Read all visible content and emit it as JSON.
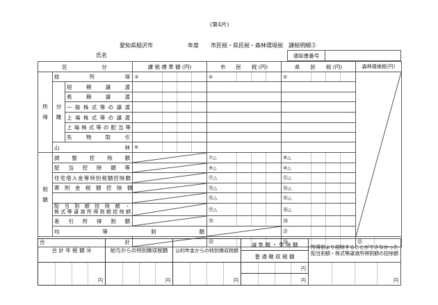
{
  "sheet": "(第4片)",
  "header": {
    "city": "愛知県稲沢市",
    "year_label": "年度",
    "title": "市民税・県民税・森林環境税　課税明細③",
    "name_label": "氏名",
    "notice_no_label": "通知書番号",
    "notice_no_value": ""
  },
  "columns": {
    "category": "区　　　　　分",
    "tax_base": "課 税 標 準 額 (円)",
    "city_tax": "市　　民　　税 (円)",
    "pref_tax": "県　　民　　税 (円)",
    "forest_tax": "森林環境税(円)"
  },
  "groups": {
    "income": "所\n\n得",
    "bunri": "分\n\n離",
    "reduction": "割\n\n額"
  },
  "rows": {
    "total_income": {
      "label": "総　　所　　得",
      "base": "③",
      "city": "④",
      "pref": "⑤"
    },
    "short": {
      "label": "短　期　譲　渡"
    },
    "long": {
      "label": "長　期　譲　渡"
    },
    "general_stock": {
      "label": "一般株式等の譲渡"
    },
    "listed_stock": {
      "label": "上場株式等の譲渡"
    },
    "listed_dividend": {
      "label": "上場株式等の配当等"
    },
    "futures": {
      "label": "先　物　取　引"
    },
    "forest": {
      "label": "山　　　　林",
      "base": "⑥"
    },
    "adjust": {
      "label": "調　整　控　除　額",
      "city": "⑦△",
      "pref": "⑧△"
    },
    "dividend": {
      "label": "配　当　控　除　額　等",
      "city": "⑨△",
      "pref": "⑩△"
    },
    "housing": {
      "label": "住宅借入金等特別税額控除額",
      "city": "⑪△",
      "pref": "⑫△"
    },
    "donation": {
      "label": "寄　附　金　税　額　控　除　額",
      "city": "⑬△",
      "pref": "⑭△"
    },
    "blank": {
      "label": "",
      "city": "⑮△",
      "pref": "⑯△"
    },
    "div_split": {
      "label1": "配 当 割 額 控 除 額 ・",
      "label2": "株式等譲渡所得割額控除額",
      "city": "⑰△",
      "pref": "⑱△"
    },
    "net": {
      "label": "差　引　所　得　割　額",
      "city": "⑲",
      "pref": "⑳"
    },
    "equal": {
      "label": "均　　　等　　　割　　　額",
      "city": "㉑",
      "pref": "㉒"
    },
    "total": {
      "label": "合　　　　　　　　　　　計",
      "city": "㉓",
      "pref": "㉔",
      "forest": "㉕"
    }
  },
  "bottom": {
    "annual_total": "合 計 年 税 額 ㉖",
    "salary": "給与からの特別徴収税額",
    "pension": "公的年金からの特別徴収税額",
    "exempt": "減 免 額 ・ 免 除 額",
    "ordinary": "普 通 徴 収 税 額",
    "uncredited": "所得割より控除することができなかった配当割額・株式等譲渡所得割額の控除額",
    "yen": "円"
  }
}
